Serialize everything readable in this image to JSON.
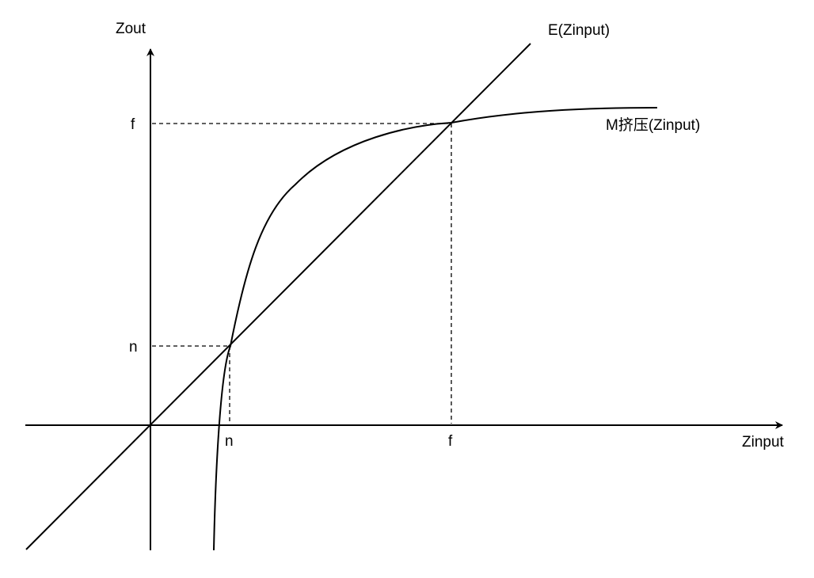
{
  "axes": {
    "y_label": "Zout",
    "x_label": "Zinput"
  },
  "lines": {
    "identity_label": "E(Zinput)",
    "curve_label": "M挤压(Zinput)"
  },
  "ticks": {
    "y_f": "f",
    "y_n": "n",
    "x_n": "n",
    "x_f": "f"
  },
  "colors": {
    "stroke": "#000000",
    "background": "#ffffff"
  }
}
